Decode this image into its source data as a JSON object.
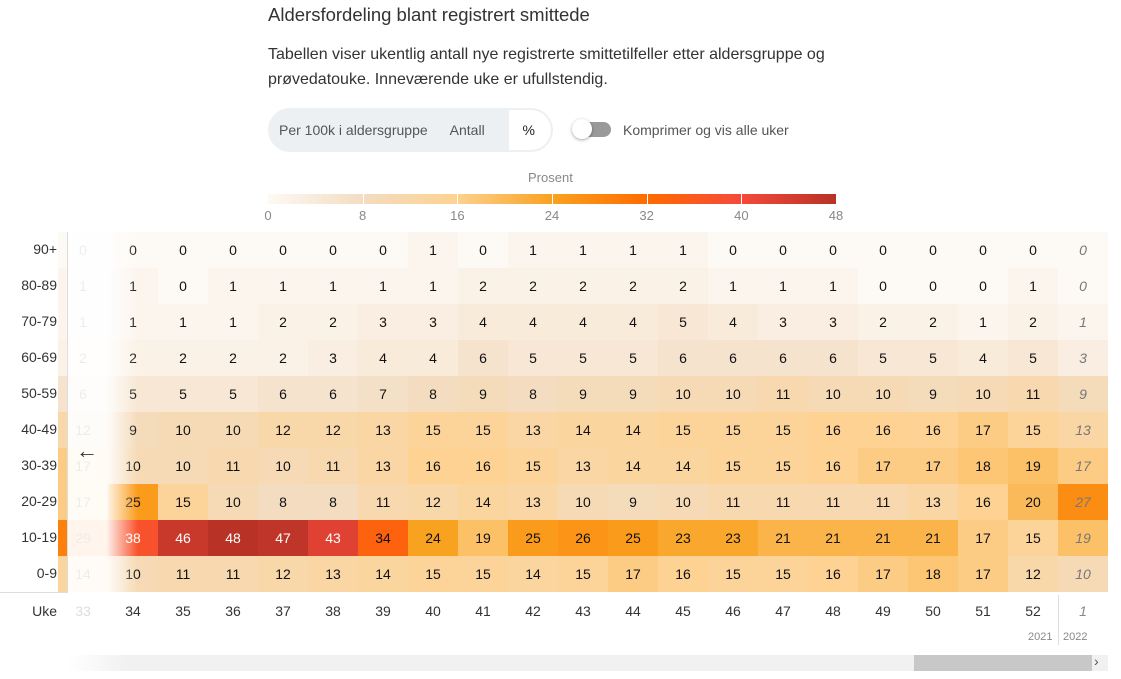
{
  "title": "Aldersfordeling blant registrert smittede",
  "description": "Tabellen viser ukentlig antall nye registrerte smittetilfeller etter aldersgruppe og prøvedatouke. Inneværende uke er ufullstendig.",
  "controls": {
    "options": [
      "Per 100k i aldersgruppe",
      "Antall",
      "%"
    ],
    "selected": "%",
    "toggle_label": "Komprimer og vis alle uker",
    "toggle_on": false
  },
  "colors": {
    "scale": [
      "#fdf9f4",
      "#f3dcc0",
      "#fdd292",
      "#f9a21f",
      "#ff6a00",
      "#f64a3a",
      "#b83226"
    ]
  },
  "chart_data": {
    "type": "heatmap",
    "legend_title": "Prosent",
    "legend_ticks": [
      "0",
      "8",
      "16",
      "24",
      "32",
      "40",
      "48"
    ],
    "range": [
      0,
      48
    ],
    "row_header_label": "Uke",
    "rows": [
      "90+",
      "80-89",
      "70-79",
      "60-69",
      "50-59",
      "40-49",
      "30-39",
      "20-29",
      "10-19",
      "0-9"
    ],
    "weeks": [
      "33",
      "34",
      "35",
      "36",
      "37",
      "38",
      "39",
      "40",
      "41",
      "42",
      "43",
      "44",
      "45",
      "46",
      "47",
      "48",
      "49",
      "50",
      "51",
      "52",
      "1"
    ],
    "years": [
      "2021",
      "2022"
    ],
    "values": [
      [
        0,
        0,
        0,
        0,
        0,
        0,
        0,
        1,
        0,
        1,
        1,
        1,
        1,
        0,
        0,
        0,
        0,
        0,
        0,
        0,
        0
      ],
      [
        1,
        1,
        0,
        1,
        1,
        1,
        1,
        1,
        2,
        2,
        2,
        2,
        2,
        1,
        1,
        1,
        0,
        0,
        0,
        1,
        0
      ],
      [
        1,
        1,
        1,
        1,
        2,
        2,
        3,
        3,
        4,
        4,
        4,
        4,
        5,
        4,
        3,
        3,
        2,
        2,
        1,
        2,
        1
      ],
      [
        2,
        2,
        2,
        2,
        2,
        3,
        4,
        4,
        6,
        5,
        5,
        5,
        6,
        6,
        6,
        6,
        5,
        5,
        4,
        5,
        3
      ],
      [
        6,
        5,
        5,
        5,
        6,
        6,
        7,
        8,
        9,
        8,
        9,
        9,
        10,
        10,
        11,
        10,
        10,
        9,
        10,
        11,
        9
      ],
      [
        12,
        9,
        10,
        10,
        12,
        12,
        13,
        15,
        15,
        13,
        14,
        14,
        15,
        15,
        15,
        16,
        16,
        16,
        17,
        15,
        13
      ],
      [
        17,
        10,
        10,
        11,
        10,
        11,
        13,
        16,
        16,
        15,
        13,
        14,
        14,
        15,
        15,
        16,
        17,
        17,
        18,
        19,
        17
      ],
      [
        17,
        25,
        15,
        10,
        8,
        8,
        11,
        12,
        14,
        13,
        10,
        9,
        10,
        11,
        11,
        11,
        11,
        13,
        16,
        20,
        27
      ],
      [
        29,
        38,
        46,
        48,
        47,
        43,
        34,
        24,
        19,
        25,
        26,
        25,
        23,
        23,
        21,
        21,
        21,
        21,
        17,
        15,
        19
      ],
      [
        14,
        10,
        11,
        11,
        12,
        13,
        14,
        15,
        15,
        14,
        15,
        17,
        16,
        15,
        15,
        16,
        17,
        18,
        17,
        12,
        10
      ]
    ]
  }
}
